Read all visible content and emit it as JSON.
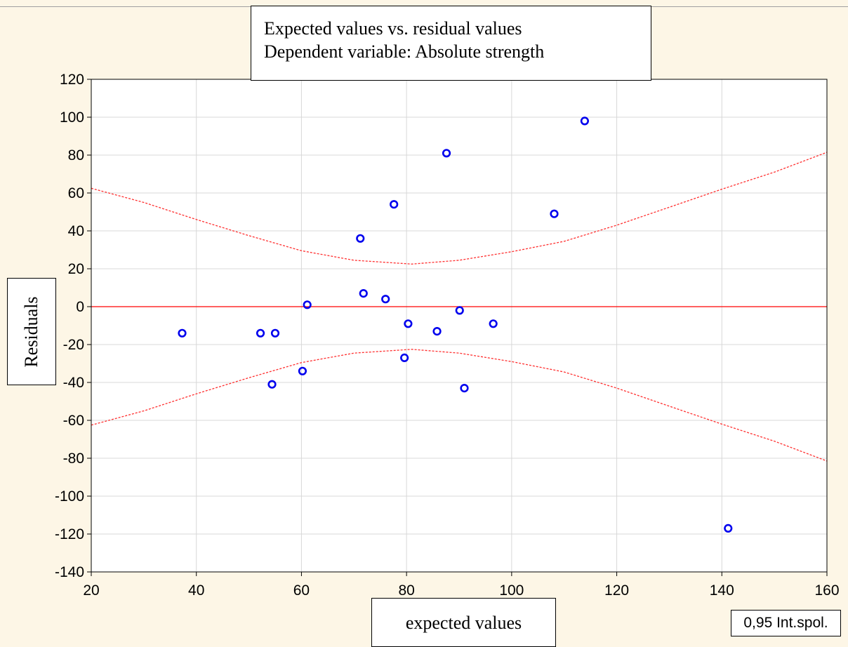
{
  "chart_data": {
    "type": "scatter",
    "title": "Expected values vs. residual values",
    "subtitle": "Dependent variable: Absolute strength",
    "xlabel": "expected values",
    "ylabel": "Residuals",
    "xlim": [
      20,
      160
    ],
    "ylim": [
      -140,
      120
    ],
    "x_ticks": [
      20,
      40,
      60,
      80,
      100,
      120,
      140,
      160
    ],
    "y_ticks": [
      -140,
      -120,
      -100,
      -80,
      -60,
      -40,
      -20,
      0,
      20,
      40,
      60,
      80,
      100,
      120
    ],
    "grid": true,
    "legend": "0,95 Int.spol.",
    "legend_placement": "bottom-right",
    "colors": {
      "points": "#0000ee",
      "zero_line": "#ff0000",
      "interval": "#ff3030",
      "grid": "#d8d8d8",
      "plot_background": "#ffffff",
      "page_background": "#fdf6e6"
    },
    "points": [
      {
        "x": 37.3,
        "y": -14
      },
      {
        "x": 52.2,
        "y": -14
      },
      {
        "x": 55.0,
        "y": -14
      },
      {
        "x": 54.4,
        "y": -41
      },
      {
        "x": 60.2,
        "y": -34
      },
      {
        "x": 61.1,
        "y": 1
      },
      {
        "x": 71.2,
        "y": 36
      },
      {
        "x": 71.8,
        "y": 7
      },
      {
        "x": 76.0,
        "y": 4
      },
      {
        "x": 77.6,
        "y": 54
      },
      {
        "x": 79.6,
        "y": -27
      },
      {
        "x": 80.3,
        "y": -9
      },
      {
        "x": 85.8,
        "y": -13
      },
      {
        "x": 87.6,
        "y": 81
      },
      {
        "x": 90.1,
        "y": -2
      },
      {
        "x": 91.0,
        "y": -43
      },
      {
        "x": 96.5,
        "y": -9
      },
      {
        "x": 108.1,
        "y": 49
      },
      {
        "x": 113.9,
        "y": 98
      },
      {
        "x": 141.2,
        "y": -117
      }
    ],
    "zero_line": {
      "y": 0
    },
    "confidence_band": {
      "level": 0.95,
      "center_x": 81,
      "min_halfwidth": 22.5,
      "x": [
        20,
        30,
        40,
        50,
        60,
        70,
        81,
        90,
        100,
        110,
        120,
        130,
        140,
        150,
        160
      ],
      "upper": [
        62.5,
        55,
        46,
        37.5,
        29.5,
        24.5,
        22.5,
        24.5,
        29,
        34.5,
        43,
        52.5,
        62,
        71,
        81.5
      ]
    }
  }
}
